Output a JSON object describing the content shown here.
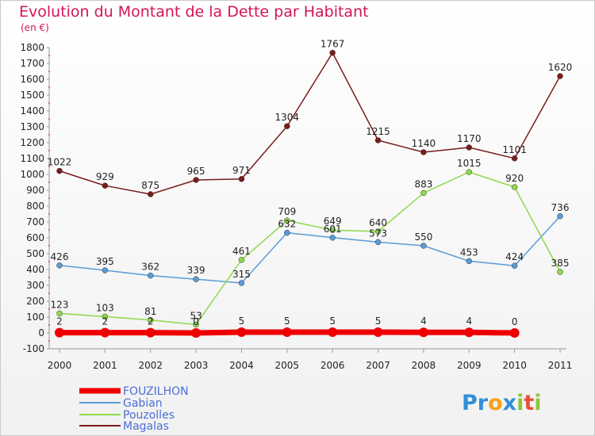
{
  "colors": {
    "title": "#d4145a",
    "fouzilhon": "#ee0000",
    "gabian": "#5b9bd5",
    "pouzolles": "#8ed84a",
    "magalas": "#7b1c1c",
    "axis": "#999999"
  },
  "chart_data": {
    "type": "line",
    "title": "Evolution du Montant de la Dette par Habitant",
    "subtitle": "(en €)",
    "x": [
      "2000",
      "2001",
      "2002",
      "2003",
      "2004",
      "2005",
      "2006",
      "2007",
      "2008",
      "2009",
      "2010",
      "2011"
    ],
    "ylim": [
      -100,
      1800
    ],
    "yticks": [
      -100,
      0,
      100,
      200,
      300,
      400,
      500,
      600,
      700,
      800,
      900,
      1000,
      1100,
      1200,
      1300,
      1400,
      1500,
      1600,
      1700,
      1800
    ],
    "grid": false,
    "legend_position": "bottom-left",
    "series": [
      {
        "name": "FOUZILHON",
        "key": "fouzilhon",
        "values": [
          2,
          2,
          2,
          0,
          5,
          5,
          5,
          5,
          4,
          4,
          0,
          null
        ]
      },
      {
        "name": "Gabian",
        "key": "gabian",
        "values": [
          426,
          395,
          362,
          339,
          315,
          632,
          601,
          573,
          550,
          453,
          424,
          736
        ]
      },
      {
        "name": "Pouzolles",
        "key": "pouzolles",
        "values": [
          123,
          103,
          81,
          53,
          461,
          709,
          649,
          640,
          883,
          1015,
          920,
          385
        ]
      },
      {
        "name": "Magalas",
        "key": "magalas",
        "values": [
          1022,
          929,
          875,
          965,
          971,
          1304,
          1767,
          1215,
          1140,
          1170,
          1101,
          1620
        ]
      }
    ]
  },
  "logo": {
    "text": "Proxiti"
  }
}
